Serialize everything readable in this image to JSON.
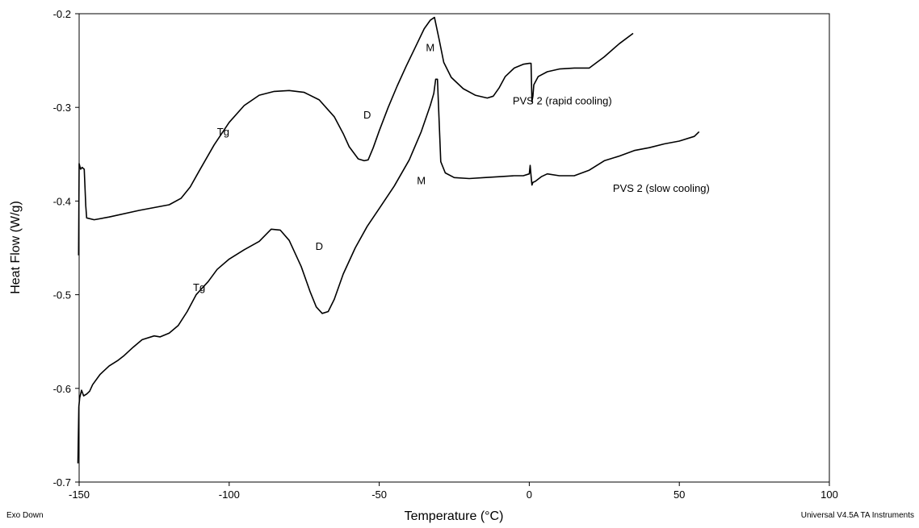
{
  "chart_data": {
    "type": "line",
    "title": "",
    "xlabel": "Temperature (°C)",
    "ylabel": "Heat Flow (W/g)",
    "xlim": [
      -150,
      100
    ],
    "ylim": [
      -0.7,
      -0.2
    ],
    "xticks": [
      -150,
      -100,
      -50,
      0,
      50,
      100
    ],
    "yticks": [
      -0.7,
      -0.6,
      -0.5,
      -0.4,
      -0.3,
      -0.2
    ],
    "ytick_labels": [
      "-0.7",
      "-0.6",
      "-0.5",
      "-0.4",
      "-0.3",
      "-0.2"
    ],
    "grid": false,
    "colors": {
      "line": "#000000",
      "axis": "#000000"
    },
    "series": [
      {
        "name": "PVS 2 (rapid cooling)",
        "x": [
          -150.2,
          -150,
          -149.6,
          -149.5,
          -149,
          -148.7,
          -148.3,
          -147.8,
          -147.5,
          -145,
          -140,
          -130,
          -120,
          -116,
          -113,
          -110,
          -105,
          -100,
          -95,
          -90,
          -85,
          -80,
          -75,
          -70,
          -65,
          -62,
          -60,
          -57,
          -55,
          -53.7,
          -52,
          -50,
          -47,
          -44,
          -41,
          -38,
          -35,
          -33,
          -31.6,
          -30,
          -28.5,
          -26,
          -22,
          -18,
          -14,
          -12,
          -10,
          -8,
          -5,
          -2,
          0,
          0.6,
          0.9,
          1.2,
          1.5,
          3,
          6,
          10,
          15,
          20,
          25,
          30,
          34.6
        ],
        "y": [
          -0.458,
          -0.36,
          -0.365,
          -0.366,
          -0.364,
          -0.365,
          -0.366,
          -0.405,
          -0.418,
          -0.42,
          -0.417,
          -0.41,
          -0.404,
          -0.397,
          -0.385,
          -0.368,
          -0.34,
          -0.316,
          -0.298,
          -0.287,
          -0.283,
          -0.282,
          -0.284,
          -0.292,
          -0.31,
          -0.328,
          -0.342,
          -0.355,
          -0.357,
          -0.356,
          -0.343,
          -0.325,
          -0.3,
          -0.277,
          -0.256,
          -0.236,
          -0.216,
          -0.207,
          -0.204,
          -0.228,
          -0.252,
          -0.268,
          -0.28,
          -0.287,
          -0.29,
          -0.288,
          -0.279,
          -0.267,
          -0.258,
          -0.254,
          -0.253,
          -0.253,
          -0.294,
          -0.288,
          -0.276,
          -0.267,
          -0.262,
          -0.259,
          -0.258,
          -0.258,
          -0.246,
          -0.232,
          -0.221
        ]
      },
      {
        "name": "PVS 2 (slow cooling)",
        "x": [
          -150.4,
          -150.1,
          -149.8,
          -149.2,
          -148.5,
          -147.5,
          -146.5,
          -145.5,
          -143,
          -140,
          -137,
          -135,
          -132,
          -129,
          -125,
          -123,
          -120,
          -117,
          -114,
          -111,
          -107,
          -104,
          -100,
          -95,
          -90,
          -86,
          -83,
          -80,
          -76,
          -73,
          -71,
          -69,
          -67,
          -65,
          -62,
          -58,
          -54,
          -50,
          -45,
          -40,
          -36,
          -33,
          -31.8,
          -31.2,
          -30.6,
          -29.5,
          -28,
          -25,
          -20,
          -15,
          -10,
          -5,
          -2,
          0,
          0.3,
          0.6,
          0.9,
          1.2,
          2,
          4,
          6,
          10,
          15,
          20,
          25,
          30,
          35,
          40,
          45,
          50,
          55,
          56.6
        ],
        "y": [
          -0.68,
          -0.62,
          -0.61,
          -0.602,
          -0.608,
          -0.606,
          -0.603,
          -0.596,
          -0.585,
          -0.576,
          -0.57,
          -0.565,
          -0.556,
          -0.548,
          -0.544,
          -0.545,
          -0.541,
          -0.533,
          -0.518,
          -0.5,
          -0.486,
          -0.473,
          -0.462,
          -0.452,
          -0.443,
          -0.43,
          -0.431,
          -0.442,
          -0.47,
          -0.497,
          -0.513,
          -0.52,
          -0.518,
          -0.505,
          -0.478,
          -0.45,
          -0.427,
          -0.408,
          -0.384,
          -0.356,
          -0.326,
          -0.298,
          -0.285,
          -0.27,
          -0.27,
          -0.358,
          -0.37,
          -0.375,
          -0.376,
          -0.375,
          -0.374,
          -0.373,
          -0.373,
          -0.371,
          -0.362,
          -0.373,
          -0.383,
          -0.38,
          -0.379,
          -0.374,
          -0.371,
          -0.373,
          -0.373,
          -0.367,
          -0.357,
          -0.352,
          -0.346,
          -0.343,
          -0.339,
          -0.336,
          -0.331,
          -0.326
        ]
      }
    ],
    "annotations": [
      {
        "text": "Tg",
        "x": -102,
        "y": -0.33
      },
      {
        "text": "D",
        "x": -54,
        "y": -0.312
      },
      {
        "text": "M",
        "x": -33,
        "y": -0.24
      },
      {
        "text": "PVS 2 (rapid cooling)",
        "x": 11,
        "y": -0.297
      },
      {
        "text": "M",
        "x": -36,
        "y": -0.382
      },
      {
        "text": "PVS 2 (slow cooling)",
        "x": 44,
        "y": -0.39
      },
      {
        "text": "Tg",
        "x": -110,
        "y": -0.496
      },
      {
        "text": "D",
        "x": -70,
        "y": -0.452
      }
    ]
  },
  "footer": {
    "left": "Exo Down",
    "right": "Universal V4.5A TA Instruments"
  }
}
